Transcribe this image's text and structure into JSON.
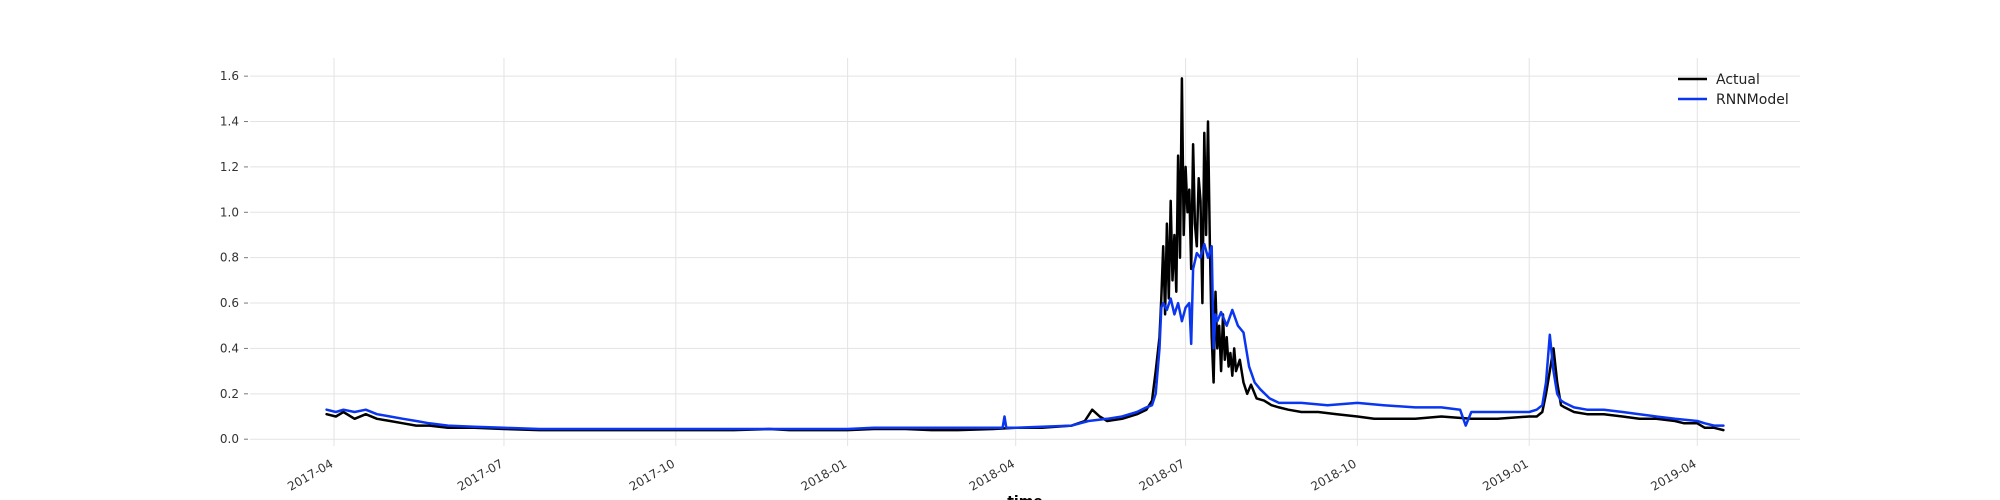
{
  "chart_data": {
    "type": "line",
    "title": "",
    "xlabel": "time",
    "ylabel": "",
    "xlim": [
      "2017-02-15",
      "2019-05-26"
    ],
    "ylim": [
      -0.03,
      1.68
    ],
    "x_ticks": [
      "2017-04",
      "2017-07",
      "2017-10",
      "2018-01",
      "2018-04",
      "2018-07",
      "2018-10",
      "2019-01",
      "2019-04"
    ],
    "x_tick_dates": [
      "2017-04-01",
      "2017-07-01",
      "2017-10-01",
      "2018-01-01",
      "2018-04-01",
      "2018-07-01",
      "2018-10-01",
      "2019-01-01",
      "2019-04-01"
    ],
    "y_ticks": [
      "0.0",
      "0.2",
      "0.4",
      "0.6",
      "0.8",
      "1.0",
      "1.2",
      "1.4",
      "1.6"
    ],
    "y_tick_values": [
      0.0,
      0.2,
      0.4,
      0.6,
      0.8,
      1.0,
      1.2,
      1.4,
      1.6
    ],
    "grid": true,
    "legend_position": "top-right",
    "series": [
      {
        "name": "Actual",
        "color": "#000000",
        "x": [
          "2017-03-28",
          "2017-04-02",
          "2017-04-06",
          "2017-04-12",
          "2017-04-18",
          "2017-04-24",
          "2017-05-01",
          "2017-05-08",
          "2017-05-15",
          "2017-05-22",
          "2017-06-01",
          "2017-06-15",
          "2017-07-01",
          "2017-07-20",
          "2017-08-10",
          "2017-09-01",
          "2017-10-01",
          "2017-11-01",
          "2017-11-20",
          "2017-12-01",
          "2018-01-01",
          "2018-01-15",
          "2018-02-01",
          "2018-02-15",
          "2018-03-01",
          "2018-03-20",
          "2018-04-01",
          "2018-04-15",
          "2018-05-01",
          "2018-05-08",
          "2018-05-12",
          "2018-05-16",
          "2018-05-20",
          "2018-05-28",
          "2018-06-05",
          "2018-06-10",
          "2018-06-13",
          "2018-06-15",
          "2018-06-17",
          "2018-06-18",
          "2018-06-19",
          "2018-06-20",
          "2018-06-21",
          "2018-06-22",
          "2018-06-23",
          "2018-06-24",
          "2018-06-25",
          "2018-06-26",
          "2018-06-27",
          "2018-06-28",
          "2018-06-29",
          "2018-06-30",
          "2018-07-01",
          "2018-07-02",
          "2018-07-03",
          "2018-07-04",
          "2018-07-05",
          "2018-07-06",
          "2018-07-07",
          "2018-07-08",
          "2018-07-09",
          "2018-07-10",
          "2018-07-11",
          "2018-07-12",
          "2018-07-13",
          "2018-07-14",
          "2018-07-15",
          "2018-07-16",
          "2018-07-17",
          "2018-07-18",
          "2018-07-19",
          "2018-07-20",
          "2018-07-21",
          "2018-07-22",
          "2018-07-23",
          "2018-07-24",
          "2018-07-25",
          "2018-07-26",
          "2018-07-27",
          "2018-07-28",
          "2018-07-30",
          "2018-08-01",
          "2018-08-03",
          "2018-08-05",
          "2018-08-08",
          "2018-08-12",
          "2018-08-16",
          "2018-08-20",
          "2018-08-25",
          "2018-09-01",
          "2018-09-10",
          "2018-09-20",
          "2018-10-01",
          "2018-10-10",
          "2018-10-20",
          "2018-11-01",
          "2018-11-15",
          "2018-12-01",
          "2018-12-15",
          "2019-01-01",
          "2019-01-05",
          "2019-01-08",
          "2019-01-10",
          "2019-01-12",
          "2019-01-14",
          "2019-01-16",
          "2019-01-18",
          "2019-01-20",
          "2019-01-25",
          "2019-02-01",
          "2019-02-10",
          "2019-02-20",
          "2019-03-01",
          "2019-03-10",
          "2019-03-20",
          "2019-03-25",
          "2019-04-01",
          "2019-04-05",
          "2019-04-10",
          "2019-04-15"
        ],
        "y": [
          0.11,
          0.1,
          0.12,
          0.09,
          0.11,
          0.09,
          0.08,
          0.07,
          0.06,
          0.06,
          0.05,
          0.05,
          0.045,
          0.04,
          0.04,
          0.04,
          0.04,
          0.04,
          0.045,
          0.04,
          0.04,
          0.045,
          0.045,
          0.04,
          0.04,
          0.045,
          0.05,
          0.05,
          0.06,
          0.08,
          0.13,
          0.1,
          0.08,
          0.09,
          0.11,
          0.13,
          0.17,
          0.3,
          0.45,
          0.62,
          0.85,
          0.55,
          0.95,
          0.62,
          1.05,
          0.7,
          0.9,
          0.65,
          1.25,
          0.8,
          1.59,
          0.9,
          1.2,
          1.0,
          1.1,
          0.75,
          1.3,
          0.95,
          0.85,
          1.15,
          1.05,
          0.6,
          1.35,
          0.9,
          1.4,
          0.85,
          0.45,
          0.25,
          0.65,
          0.4,
          0.5,
          0.3,
          0.55,
          0.35,
          0.45,
          0.32,
          0.38,
          0.28,
          0.4,
          0.3,
          0.35,
          0.25,
          0.2,
          0.24,
          0.18,
          0.17,
          0.15,
          0.14,
          0.13,
          0.12,
          0.12,
          0.11,
          0.1,
          0.09,
          0.09,
          0.09,
          0.1,
          0.09,
          0.09,
          0.1,
          0.1,
          0.12,
          0.2,
          0.3,
          0.4,
          0.25,
          0.15,
          0.14,
          0.12,
          0.11,
          0.11,
          0.1,
          0.09,
          0.09,
          0.08,
          0.07,
          0.07,
          0.05,
          0.05,
          0.04
        ]
      },
      {
        "name": "RNNModel",
        "color": "#0a36f0",
        "x": [
          "2017-03-28",
          "2017-04-02",
          "2017-04-06",
          "2017-04-12",
          "2017-04-18",
          "2017-04-24",
          "2017-05-01",
          "2017-05-08",
          "2017-05-15",
          "2017-05-22",
          "2017-06-01",
          "2017-06-15",
          "2017-07-01",
          "2017-07-20",
          "2017-08-10",
          "2017-09-01",
          "2017-10-01",
          "2017-11-01",
          "2017-12-01",
          "2018-01-01",
          "2018-01-15",
          "2018-02-01",
          "2018-02-15",
          "2018-03-01",
          "2018-03-20",
          "2018-03-25",
          "2018-03-26",
          "2018-03-27",
          "2018-04-01",
          "2018-04-15",
          "2018-05-01",
          "2018-05-10",
          "2018-05-20",
          "2018-05-28",
          "2018-06-05",
          "2018-06-10",
          "2018-06-13",
          "2018-06-15",
          "2018-06-17",
          "2018-06-18",
          "2018-06-19",
          "2018-06-21",
          "2018-06-23",
          "2018-06-25",
          "2018-06-27",
          "2018-06-29",
          "2018-07-01",
          "2018-07-03",
          "2018-07-04",
          "2018-07-05",
          "2018-07-07",
          "2018-07-09",
          "2018-07-11",
          "2018-07-13",
          "2018-07-15",
          "2018-07-16",
          "2018-07-17",
          "2018-07-18",
          "2018-07-20",
          "2018-07-23",
          "2018-07-26",
          "2018-07-29",
          "2018-08-01",
          "2018-08-04",
          "2018-08-07",
          "2018-08-10",
          "2018-08-15",
          "2018-08-20",
          "2018-09-01",
          "2018-09-15",
          "2018-10-01",
          "2018-10-15",
          "2018-11-01",
          "2018-11-15",
          "2018-11-25",
          "2018-11-28",
          "2018-12-01",
          "2018-12-15",
          "2019-01-01",
          "2019-01-05",
          "2019-01-08",
          "2019-01-10",
          "2019-01-12",
          "2019-01-14",
          "2019-01-16",
          "2019-01-18",
          "2019-01-20",
          "2019-01-25",
          "2019-02-01",
          "2019-02-10",
          "2019-02-20",
          "2019-03-01",
          "2019-03-10",
          "2019-03-20",
          "2019-04-01",
          "2019-04-05",
          "2019-04-10",
          "2019-04-15"
        ],
        "y": [
          0.13,
          0.12,
          0.13,
          0.12,
          0.13,
          0.11,
          0.1,
          0.09,
          0.08,
          0.07,
          0.06,
          0.055,
          0.05,
          0.045,
          0.045,
          0.045,
          0.045,
          0.045,
          0.045,
          0.045,
          0.05,
          0.05,
          0.05,
          0.05,
          0.05,
          0.05,
          0.1,
          0.05,
          0.05,
          0.055,
          0.06,
          0.08,
          0.09,
          0.1,
          0.12,
          0.14,
          0.15,
          0.2,
          0.4,
          0.58,
          0.6,
          0.57,
          0.62,
          0.55,
          0.6,
          0.52,
          0.58,
          0.6,
          0.42,
          0.75,
          0.82,
          0.8,
          0.86,
          0.8,
          0.85,
          0.4,
          0.55,
          0.52,
          0.56,
          0.5,
          0.57,
          0.5,
          0.47,
          0.32,
          0.25,
          0.22,
          0.18,
          0.16,
          0.16,
          0.15,
          0.16,
          0.15,
          0.14,
          0.14,
          0.13,
          0.06,
          0.12,
          0.12,
          0.12,
          0.13,
          0.15,
          0.25,
          0.46,
          0.3,
          0.2,
          0.17,
          0.16,
          0.14,
          0.13,
          0.13,
          0.12,
          0.11,
          0.1,
          0.09,
          0.08,
          0.07,
          0.06,
          0.06
        ]
      }
    ]
  }
}
